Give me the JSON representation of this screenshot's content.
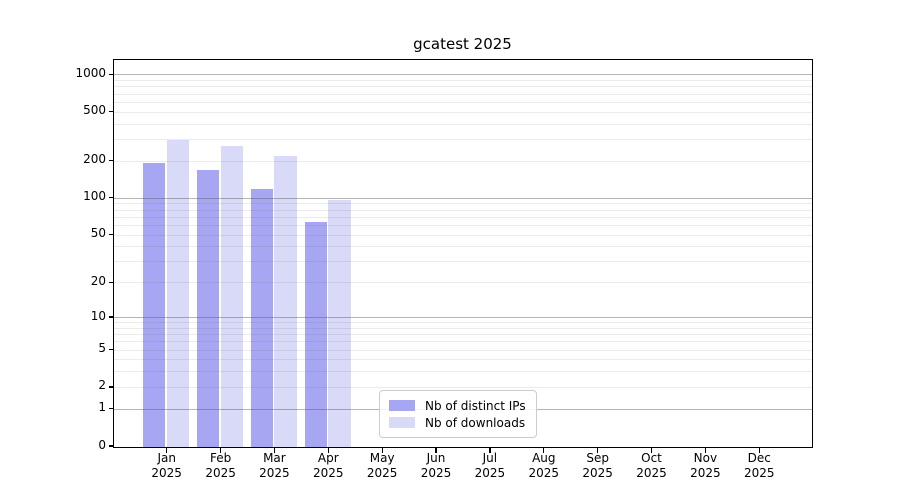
{
  "chart_data": {
    "type": "bar",
    "title": "gcatest 2025",
    "categories": [
      "Jan",
      "Feb",
      "Mar",
      "Apr",
      "May",
      "Jun",
      "Jul",
      "Aug",
      "Sep",
      "Oct",
      "Nov",
      "Dec"
    ],
    "year": "2025",
    "series": [
      {
        "name": "Nb of distinct IPs",
        "color": "#a6a6f2",
        "values": [
          195,
          170,
          120,
          64,
          null,
          null,
          null,
          null,
          null,
          null,
          null,
          null
        ]
      },
      {
        "name": "Nb of downloads",
        "color": "#d9d9f8",
        "values": [
          300,
          265,
          220,
          97,
          null,
          null,
          null,
          null,
          null,
          null,
          null,
          null
        ]
      }
    ],
    "yscale": "log1p",
    "ylim": [
      0,
      1305
    ],
    "ytick_labels": [
      0,
      1,
      2,
      5,
      10,
      20,
      50,
      100,
      200,
      500,
      1000
    ],
    "grid": {
      "major": [
        1,
        10,
        100,
        1000
      ],
      "minor_decades": true
    },
    "legend_position": "bottom-center",
    "xlabel": "",
    "ylabel": ""
  }
}
